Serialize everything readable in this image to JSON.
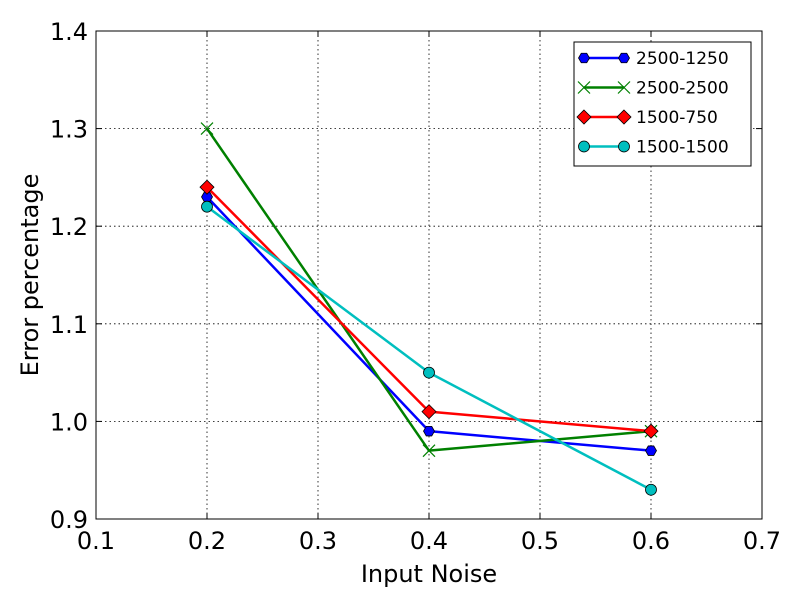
{
  "chart_data": {
    "type": "line",
    "title": "",
    "xlabel": "Input Noise",
    "ylabel": "Error percentage",
    "xlim": [
      0.1,
      0.7
    ],
    "ylim": [
      0.9,
      1.4
    ],
    "x_ticks": [
      "0.1",
      "0.2",
      "0.3",
      "0.4",
      "0.5",
      "0.6",
      "0.7"
    ],
    "y_ticks": [
      "0.9",
      "1.0",
      "1.1",
      "1.2",
      "1.3",
      "1.4"
    ],
    "grid": true,
    "legend_position": "top-right",
    "x": [
      0.2,
      0.4,
      0.6
    ],
    "series": [
      {
        "name": "2500-1250",
        "values": [
          1.23,
          0.99,
          0.97
        ],
        "color": "#0000ff",
        "marker": "hexagon"
      },
      {
        "name": "2500-2500",
        "values": [
          1.3,
          0.97,
          0.99
        ],
        "color": "#008000",
        "marker": "x"
      },
      {
        "name": "1500-750",
        "values": [
          1.24,
          1.01,
          0.99
        ],
        "color": "#ff0000",
        "marker": "diamond"
      },
      {
        "name": "1500-1500",
        "values": [
          1.22,
          1.05,
          0.93
        ],
        "color": "#00bfbf",
        "marker": "circle"
      }
    ]
  }
}
